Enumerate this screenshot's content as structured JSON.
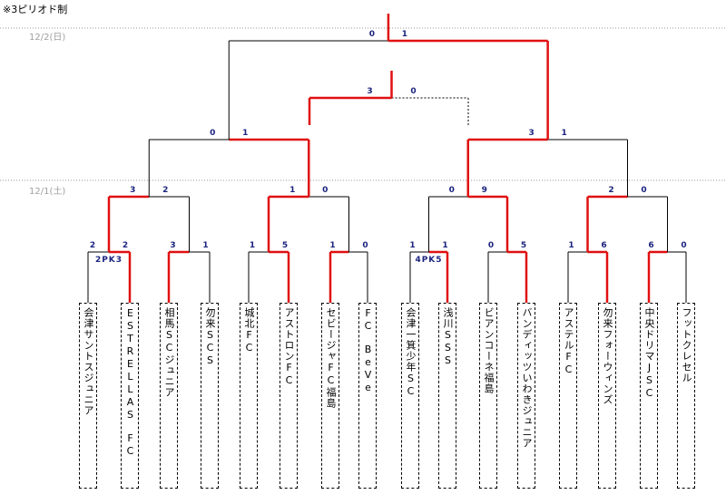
{
  "note": "※3ピリオド制",
  "dates": {
    "final_day": "12/2(日)",
    "first_day": "12/1(土)"
  },
  "teams": [
    "会津サントスジュニア",
    "ESTRELLAS　FC",
    "相馬SCジュニア",
    "勿来SCS",
    "城北FC",
    "アストロンFC",
    "セビージャFC福島",
    "FC　BeVe",
    "会津一箕少年SC",
    "浅川SSS",
    "ビアンコーネ福島",
    "バンディッツいわきジュニア",
    "アステルFC",
    "勿来フォーウィンズ",
    "中央ドリマJSC",
    "フットクレセル"
  ],
  "round1": [
    {
      "scores": [
        "2",
        "2"
      ],
      "pk": "2PK3",
      "winner": 1
    },
    {
      "scores": [
        "3",
        "1"
      ],
      "pk": "",
      "winner": 0
    },
    {
      "scores": [
        "1",
        "5"
      ],
      "pk": "",
      "winner": 1
    },
    {
      "scores": [
        "1",
        "0"
      ],
      "pk": "",
      "winner": 0
    },
    {
      "scores": [
        "1",
        "1"
      ],
      "pk": "4PK5",
      "winner": 1
    },
    {
      "scores": [
        "0",
        "5"
      ],
      "pk": "",
      "winner": 1
    },
    {
      "scores": [
        "1",
        "6"
      ],
      "pk": "",
      "winner": 1
    },
    {
      "scores": [
        "6",
        "0"
      ],
      "pk": "",
      "winner": 0
    }
  ],
  "round2": [
    {
      "scores": [
        "3",
        "2"
      ],
      "winner": 0
    },
    {
      "scores": [
        "1",
        "0"
      ],
      "winner": 0
    },
    {
      "scores": [
        "0",
        "9"
      ],
      "winner": 1
    },
    {
      "scores": [
        "2",
        "0"
      ],
      "winner": 0
    }
  ],
  "semifinals": [
    {
      "scores": [
        "0",
        "1"
      ],
      "winner": 1
    },
    {
      "scores": [
        "3",
        "1"
      ],
      "winner": 0
    }
  ],
  "third_place": {
    "scores": [
      "3",
      "0"
    ],
    "winner": 0
  },
  "final": {
    "scores": [
      "0",
      "1"
    ],
    "winner": 1
  }
}
